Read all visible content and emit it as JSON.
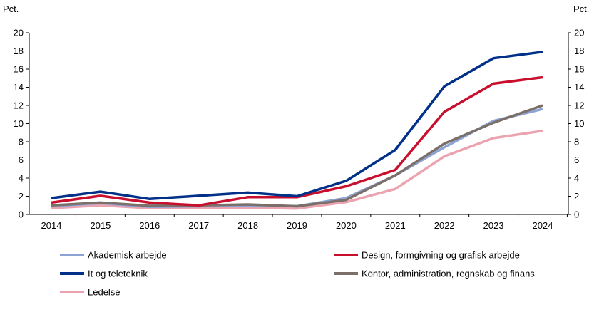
{
  "chart_data": {
    "type": "line",
    "title": "",
    "ylabel_left": "Pct.",
    "ylabel_right": "Pct.",
    "ylim": [
      0,
      20
    ],
    "yticks": [
      0,
      2,
      4,
      6,
      8,
      10,
      12,
      14,
      16,
      18,
      20
    ],
    "x": [
      "2014",
      "2015",
      "2016",
      "2017",
      "2018",
      "2019",
      "2020",
      "2021",
      "2022",
      "2023",
      "2024"
    ],
    "grid": false,
    "legend_position": "bottom",
    "series": [
      {
        "name": "Akademisk arbejde",
        "color": "#8DA3D6",
        "values": [
          0.9,
          1.25,
          0.85,
          0.9,
          1.0,
          0.9,
          1.8,
          4.3,
          7.4,
          10.3,
          11.6
        ]
      },
      {
        "name": "Design, formgivning og grafisk arbejde",
        "color": "#C8102E",
        "values": [
          1.3,
          2.05,
          1.3,
          1.0,
          1.9,
          1.9,
          3.1,
          4.9,
          11.3,
          14.4,
          15.1
        ]
      },
      {
        "name": "It og teleteknik",
        "color": "#003087",
        "values": [
          1.8,
          2.5,
          1.7,
          2.05,
          2.4,
          2.0,
          3.7,
          7.1,
          14.1,
          17.2,
          17.9
        ]
      },
      {
        "name": "Kontor, administration, regnskab og finans",
        "color": "#7A7069",
        "values": [
          1.0,
          1.3,
          0.95,
          1.0,
          1.1,
          0.9,
          1.6,
          4.3,
          7.8,
          10.1,
          12.0
        ]
      },
      {
        "name": "Ledelse",
        "color": "#EBA3B0",
        "values": [
          0.7,
          1.0,
          0.7,
          0.7,
          0.75,
          0.65,
          1.35,
          2.8,
          6.4,
          8.4,
          9.2
        ]
      }
    ]
  }
}
